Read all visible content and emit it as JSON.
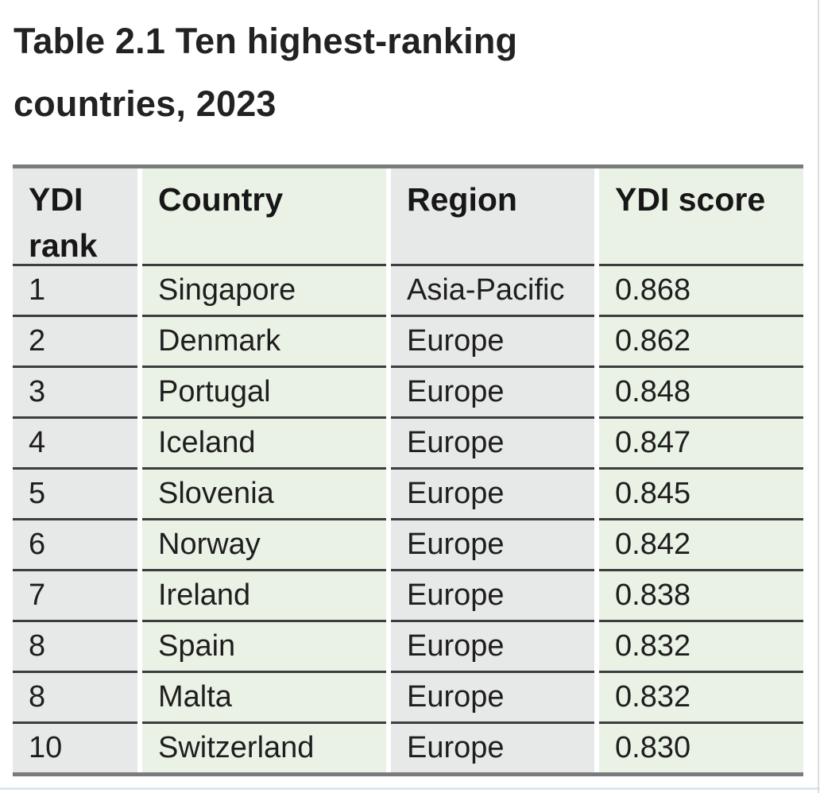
{
  "title": {
    "lines": [
      "Table 2.1  Ten highest-ranking",
      "countries, 2023"
    ]
  },
  "table": {
    "columns": [
      "YDI rank",
      "Country",
      "Region",
      "YDI score"
    ],
    "rows": [
      {
        "rank": "1",
        "country": "Singapore",
        "region": "Asia-Pacific",
        "score": "0.868"
      },
      {
        "rank": "2",
        "country": "Denmark",
        "region": "Europe",
        "score": "0.862"
      },
      {
        "rank": "3",
        "country": "Portugal",
        "region": "Europe",
        "score": "0.848"
      },
      {
        "rank": "4",
        "country": "Iceland",
        "region": "Europe",
        "score": "0.847"
      },
      {
        "rank": "5",
        "country": "Slovenia",
        "region": "Europe",
        "score": "0.845"
      },
      {
        "rank": "6",
        "country": "Norway",
        "region": "Europe",
        "score": "0.842"
      },
      {
        "rank": "7",
        "country": "Ireland",
        "region": "Europe",
        "score": "0.838"
      },
      {
        "rank": "8",
        "country": "Spain",
        "region": "Europe",
        "score": "0.832"
      },
      {
        "rank": "8",
        "country": "Malta",
        "region": "Europe",
        "score": "0.832"
      },
      {
        "rank": "10",
        "country": "Switzerland",
        "region": "Europe",
        "score": "0.830"
      }
    ]
  },
  "colors": {
    "column_gray": "#e7e8e8",
    "column_green": "#eaf2e6",
    "row_separator": "#3c3d3e",
    "table_bar": "#7a7b7d",
    "text": "#1f1e1e",
    "footer_rule": "#d9e7f3"
  }
}
